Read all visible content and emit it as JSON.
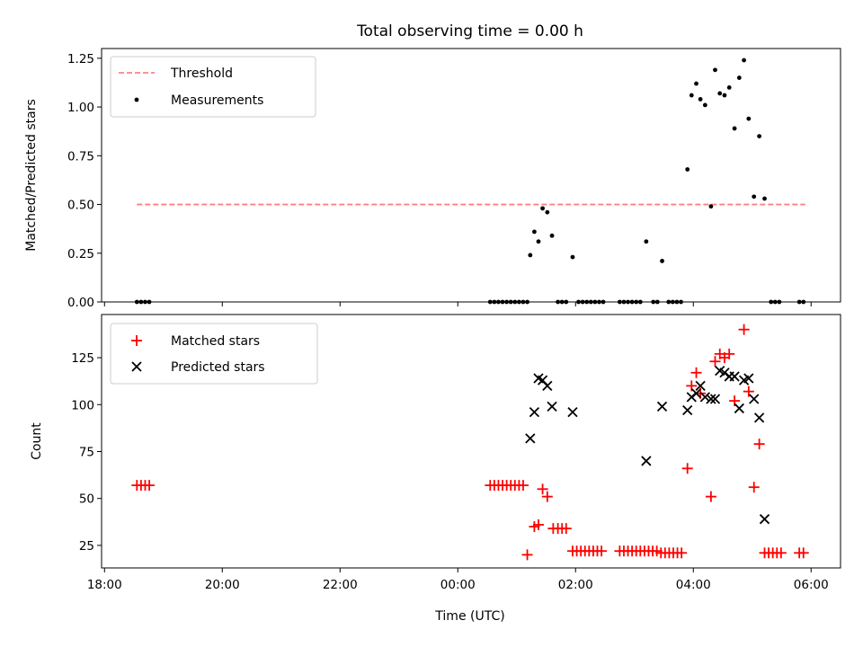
{
  "chart_data": [
    {
      "type": "scatter",
      "panel": "top",
      "title": "Total observing time = 0.00 h",
      "xlabel": "",
      "ylabel": "Matched/Predicted stars",
      "xlim": [
        17.95,
        30.5
      ],
      "ylim": [
        0,
        1.3
      ],
      "yticks": [
        0,
        0.25,
        0.5,
        0.75,
        1.0,
        1.25
      ],
      "ytick_labels": [
        "0.00",
        "0.25",
        "0.50",
        "0.75",
        "1.00",
        "1.25"
      ],
      "legend_position": "top-left",
      "legend": [
        "Threshold",
        "Measurements"
      ],
      "series": [
        {
          "name": "Threshold",
          "kind": "dashed-line",
          "color": "#ff8080",
          "x": [
            18.55,
            29.9
          ],
          "y": [
            0.5,
            0.5
          ]
        },
        {
          "name": "Measurements",
          "kind": "dot",
          "color": "#000000",
          "points": [
            [
              18.55,
              0
            ],
            [
              18.62,
              0
            ],
            [
              18.69,
              0
            ],
            [
              18.76,
              0
            ],
            [
              24.55,
              0
            ],
            [
              24.62,
              0
            ],
            [
              24.69,
              0
            ],
            [
              24.76,
              0
            ],
            [
              24.83,
              0
            ],
            [
              24.9,
              0
            ],
            [
              24.97,
              0
            ],
            [
              25.04,
              0
            ],
            [
              25.11,
              0
            ],
            [
              25.18,
              0
            ],
            [
              25.23,
              0.24
            ],
            [
              25.3,
              0.36
            ],
            [
              25.37,
              0.31
            ],
            [
              25.44,
              0.48
            ],
            [
              25.52,
              0.46
            ],
            [
              25.6,
              0.34
            ],
            [
              25.7,
              0
            ],
            [
              25.77,
              0
            ],
            [
              25.84,
              0
            ],
            [
              25.95,
              0.23
            ],
            [
              26.05,
              0
            ],
            [
              26.12,
              0
            ],
            [
              26.19,
              0
            ],
            [
              26.26,
              0
            ],
            [
              26.33,
              0
            ],
            [
              26.4,
              0
            ],
            [
              26.47,
              0
            ],
            [
              26.75,
              0
            ],
            [
              26.82,
              0
            ],
            [
              26.89,
              0
            ],
            [
              26.96,
              0
            ],
            [
              27.03,
              0
            ],
            [
              27.1,
              0
            ],
            [
              27.2,
              0.31
            ],
            [
              27.32,
              0
            ],
            [
              27.39,
              0
            ],
            [
              27.47,
              0.21
            ],
            [
              27.58,
              0
            ],
            [
              27.65,
              0
            ],
            [
              27.72,
              0
            ],
            [
              27.79,
              0
            ],
            [
              27.9,
              0.68
            ],
            [
              27.97,
              1.06
            ],
            [
              28.05,
              1.12
            ],
            [
              28.12,
              1.04
            ],
            [
              28.2,
              1.01
            ],
            [
              28.3,
              0.49
            ],
            [
              28.37,
              1.19
            ],
            [
              28.45,
              1.07
            ],
            [
              28.53,
              1.06
            ],
            [
              28.61,
              1.1
            ],
            [
              28.7,
              0.89
            ],
            [
              28.78,
              1.15
            ],
            [
              28.86,
              1.24
            ],
            [
              28.94,
              0.94
            ],
            [
              29.03,
              0.54
            ],
            [
              29.12,
              0.85
            ],
            [
              29.21,
              0.53
            ],
            [
              29.32,
              0
            ],
            [
              29.39,
              0
            ],
            [
              29.46,
              0
            ],
            [
              29.8,
              0
            ],
            [
              29.87,
              0
            ]
          ]
        }
      ]
    },
    {
      "type": "scatter",
      "panel": "bottom",
      "xlabel": "Time (UTC)",
      "ylabel": "Count",
      "xlim": [
        17.95,
        30.5
      ],
      "ylim": [
        13,
        148
      ],
      "xticks": [
        18,
        20,
        22,
        24,
        26,
        28,
        30
      ],
      "xtick_labels": [
        "18:00",
        "20:00",
        "22:00",
        "00:00",
        "02:00",
        "04:00",
        "06:00"
      ],
      "yticks": [
        25,
        50,
        75,
        100,
        125
      ],
      "ytick_labels": [
        "25",
        "50",
        "75",
        "100",
        "125"
      ],
      "legend_position": "top-left",
      "legend": [
        "Matched stars",
        "Predicted stars"
      ],
      "series": [
        {
          "name": "Matched stars",
          "kind": "plus",
          "color": "#ff0000",
          "points": [
            [
              18.55,
              57
            ],
            [
              18.62,
              57
            ],
            [
              18.69,
              57
            ],
            [
              18.76,
              57
            ],
            [
              24.55,
              57
            ],
            [
              24.62,
              57
            ],
            [
              24.69,
              57
            ],
            [
              24.76,
              57
            ],
            [
              24.83,
              57
            ],
            [
              24.9,
              57
            ],
            [
              24.97,
              57
            ],
            [
              25.04,
              57
            ],
            [
              25.11,
              57
            ],
            [
              25.18,
              20
            ],
            [
              25.3,
              35
            ],
            [
              25.37,
              36
            ],
            [
              25.44,
              55
            ],
            [
              25.52,
              51
            ],
            [
              25.62,
              34
            ],
            [
              25.7,
              34
            ],
            [
              25.77,
              34
            ],
            [
              25.84,
              34
            ],
            [
              25.95,
              22
            ],
            [
              26.02,
              22
            ],
            [
              26.09,
              22
            ],
            [
              26.16,
              22
            ],
            [
              26.23,
              22
            ],
            [
              26.3,
              22
            ],
            [
              26.37,
              22
            ],
            [
              26.44,
              22
            ],
            [
              26.75,
              22
            ],
            [
              26.82,
              22
            ],
            [
              26.89,
              22
            ],
            [
              26.96,
              22
            ],
            [
              27.03,
              22
            ],
            [
              27.1,
              22
            ],
            [
              27.17,
              22
            ],
            [
              27.24,
              22
            ],
            [
              27.31,
              22
            ],
            [
              27.38,
              22
            ],
            [
              27.45,
              21
            ],
            [
              27.52,
              21
            ],
            [
              27.59,
              21
            ],
            [
              27.66,
              21
            ],
            [
              27.73,
              21
            ],
            [
              27.8,
              21
            ],
            [
              27.9,
              66
            ],
            [
              27.97,
              110
            ],
            [
              28.05,
              117
            ],
            [
              28.12,
              106
            ],
            [
              28.3,
              51
            ],
            [
              28.37,
              123
            ],
            [
              28.45,
              127
            ],
            [
              28.53,
              125
            ],
            [
              28.61,
              127
            ],
            [
              28.7,
              102
            ],
            [
              28.86,
              140
            ],
            [
              28.94,
              107
            ],
            [
              29.03,
              56
            ],
            [
              29.12,
              79
            ],
            [
              29.21,
              21
            ],
            [
              29.28,
              21
            ],
            [
              29.35,
              21
            ],
            [
              29.42,
              21
            ],
            [
              29.49,
              21
            ],
            [
              29.8,
              21
            ],
            [
              29.87,
              21
            ]
          ]
        },
        {
          "name": "Predicted stars",
          "kind": "cross",
          "color": "#000000",
          "points": [
            [
              25.23,
              82
            ],
            [
              25.3,
              96
            ],
            [
              25.37,
              114
            ],
            [
              25.44,
              113
            ],
            [
              25.52,
              110
            ],
            [
              25.6,
              99
            ],
            [
              25.95,
              96
            ],
            [
              27.2,
              70
            ],
            [
              27.47,
              99
            ],
            [
              27.9,
              97
            ],
            [
              27.97,
              104
            ],
            [
              28.05,
              106
            ],
            [
              28.12,
              110
            ],
            [
              28.2,
              104
            ],
            [
              28.3,
              103
            ],
            [
              28.37,
              103
            ],
            [
              28.45,
              118
            ],
            [
              28.53,
              117
            ],
            [
              28.61,
              115
            ],
            [
              28.7,
              115
            ],
            [
              28.78,
              98
            ],
            [
              28.86,
              113
            ],
            [
              28.94,
              114
            ],
            [
              29.03,
              103
            ],
            [
              29.12,
              93
            ],
            [
              29.21,
              39
            ]
          ]
        }
      ]
    }
  ]
}
